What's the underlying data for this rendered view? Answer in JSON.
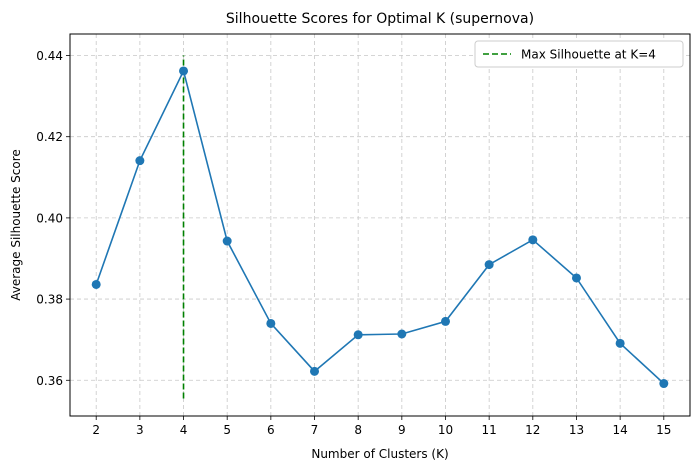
{
  "chart_data": {
    "type": "line",
    "title": "Silhouette Scores for Optimal K (supernova)",
    "xlabel": "Number of Clusters (K)",
    "ylabel": "Average Silhouette Score",
    "x": [
      2,
      3,
      4,
      5,
      6,
      7,
      8,
      9,
      10,
      11,
      12,
      13,
      14,
      15
    ],
    "xlim": [
      1.4,
      15.6
    ],
    "ylim": [
      0.3512,
      0.4453
    ],
    "yticks": [
      0.36,
      0.38,
      0.4,
      0.42,
      0.44
    ],
    "ytick_labels": [
      "0.36",
      "0.38",
      "0.40",
      "0.42",
      "0.44"
    ],
    "grid": true,
    "legend_position": "top-right",
    "series": [
      {
        "values": [
          0.3836,
          0.4141,
          0.4362,
          0.3943,
          0.374,
          0.3622,
          0.3712,
          0.3714,
          0.3745,
          0.3885,
          0.3946,
          0.3852,
          0.3691,
          0.3592
        ],
        "color": "#1f77b4",
        "marker": "circle"
      }
    ],
    "reference_line": {
      "x": 4,
      "y_range": [
        0.3555,
        0.44
      ],
      "label": "Max Silhouette at K=4",
      "color": "#008000",
      "style": "dashed"
    }
  }
}
